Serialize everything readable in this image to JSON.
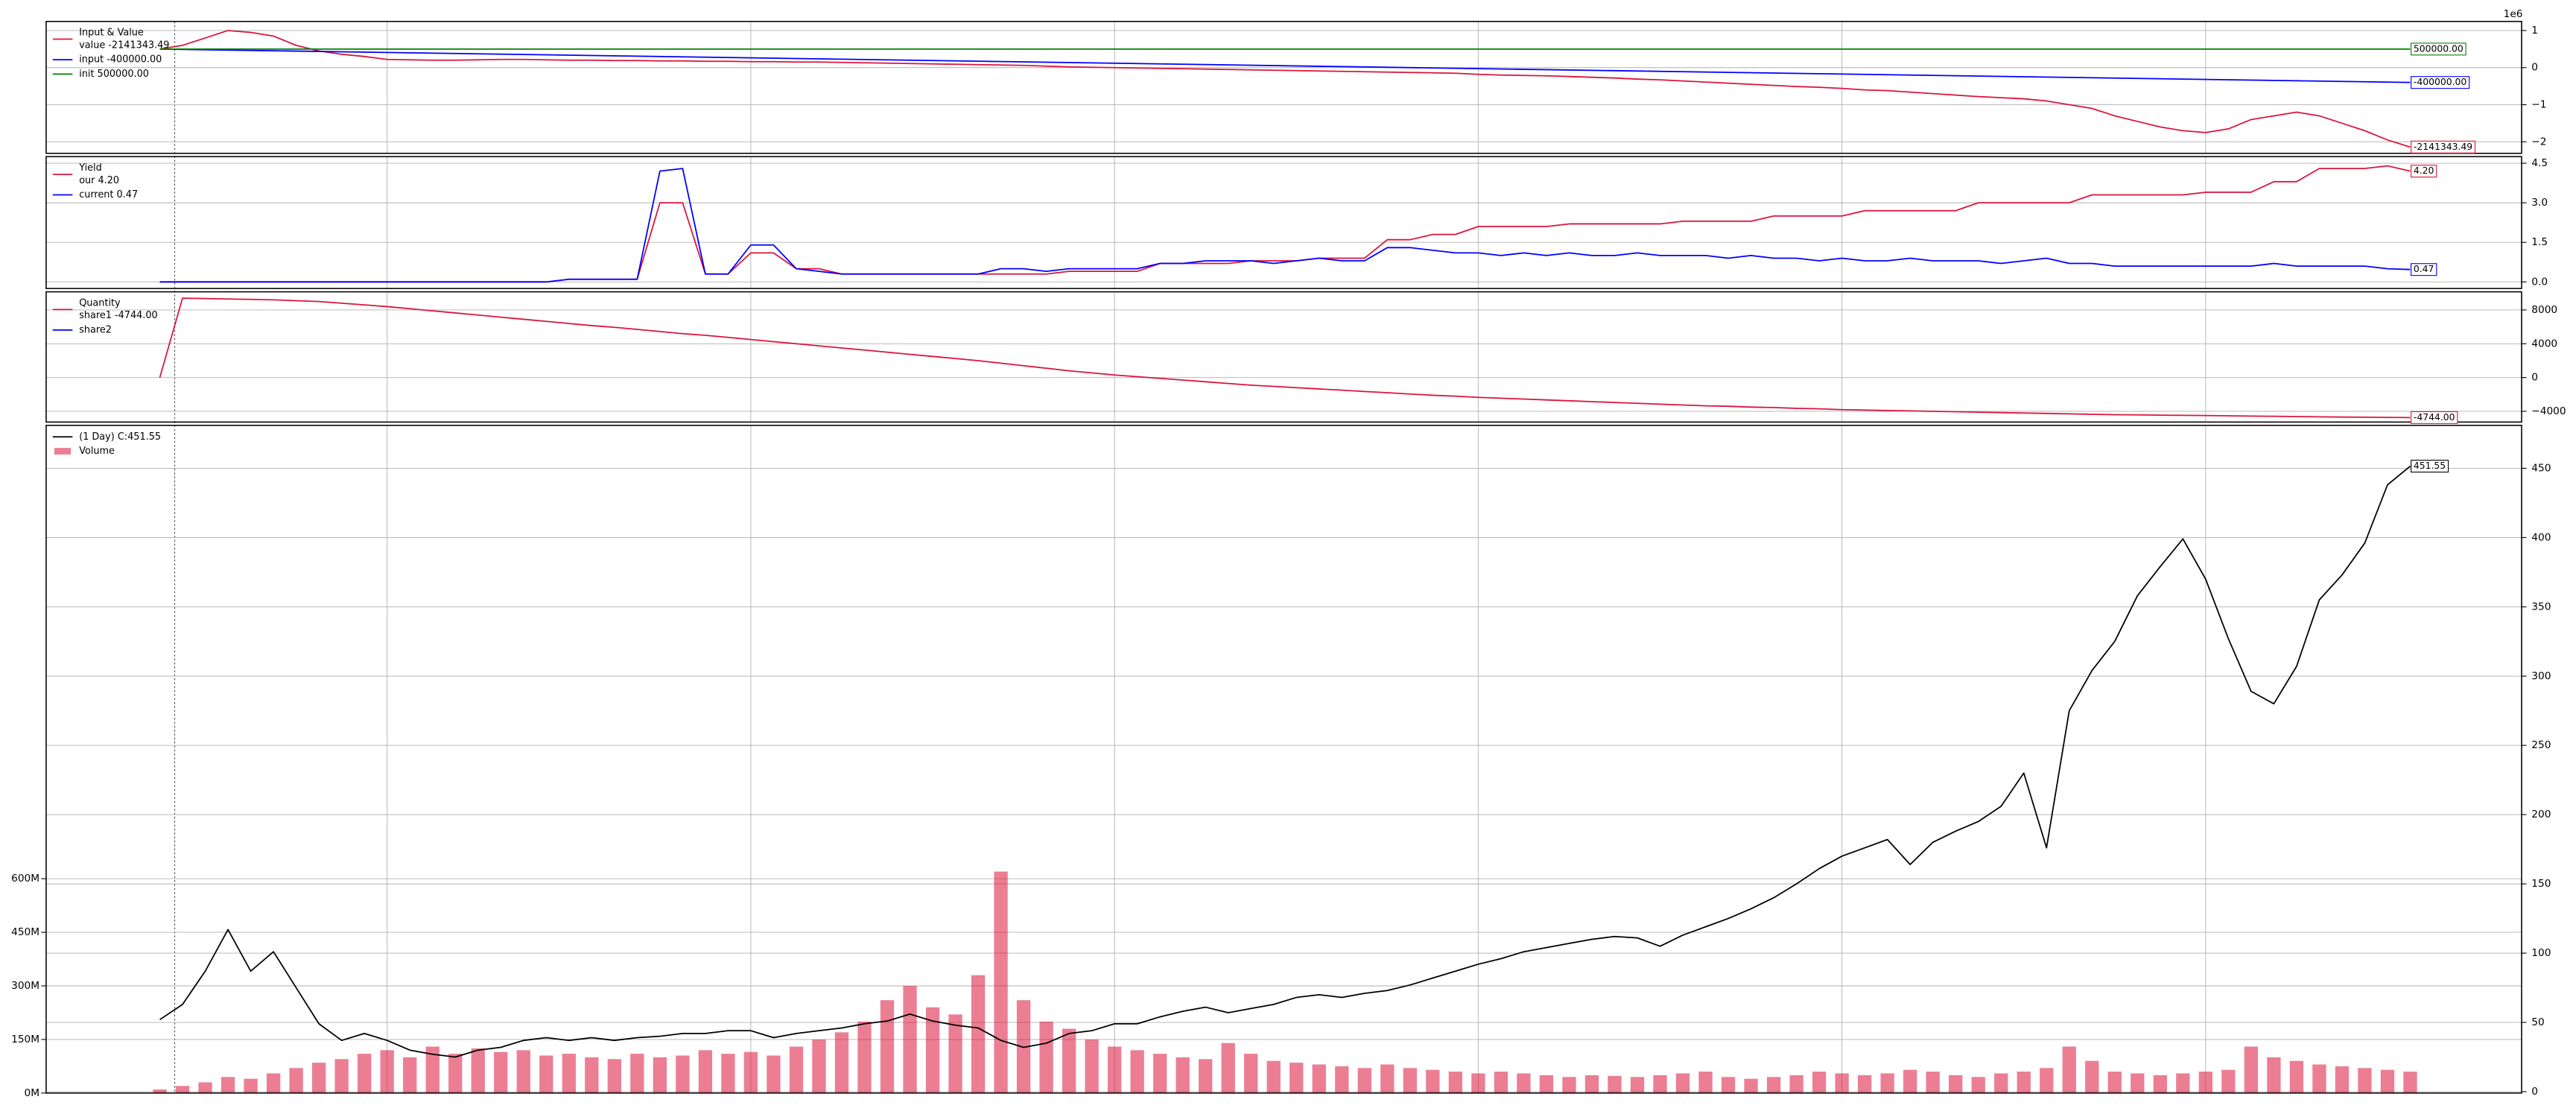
{
  "chart_data": [
    {
      "type": "line",
      "title": "Input & Value",
      "offset_text": "1e6",
      "legend": "upper left",
      "grid": true,
      "xlim": [
        -5,
        103.9
      ],
      "xticks": [
        10,
        26,
        42,
        58,
        74,
        90
      ],
      "ylim": [
        -2310000,
        1245000
      ],
      "yticks": [
        {
          "value": 1000000,
          "label": "1"
        },
        0,
        {
          "value": -1000000,
          "label": "−1"
        },
        {
          "value": -2000000,
          "label": "−2"
        }
      ],
      "series": [
        {
          "name": "value -2141343.49",
          "color": "#dc143c",
          "end_label": "-2141343.49",
          "values": [
            500000,
            600000,
            800000,
            1000000,
            950000,
            850000,
            600000,
            450000,
            360000,
            300000,
            220000,
            210000,
            200000,
            200000,
            210000,
            220000,
            220000,
            210000,
            200000,
            200000,
            190000,
            190000,
            180000,
            180000,
            170000,
            170000,
            160000,
            160000,
            150000,
            150000,
            140000,
            130000,
            120000,
            110000,
            100000,
            90000,
            80000,
            70000,
            60000,
            40000,
            20000,
            10000,
            0,
            -10000,
            -20000,
            -30000,
            -40000,
            -50000,
            -60000,
            -70000,
            -80000,
            -90000,
            -100000,
            -110000,
            -120000,
            -130000,
            -140000,
            -150000,
            -180000,
            -200000,
            -210000,
            -220000,
            -240000,
            -260000,
            -280000,
            -310000,
            -330000,
            -360000,
            -390000,
            -420000,
            -450000,
            -480000,
            -510000,
            -530000,
            -560000,
            -600000,
            -620000,
            -660000,
            -700000,
            -740000,
            -780000,
            -810000,
            -840000,
            -900000,
            -1000000,
            -1100000,
            -1300000,
            -1450000,
            -1600000,
            -1700000,
            -1750000,
            -1650000,
            -1400000,
            -1300000,
            -1200000,
            -1300000,
            -1500000,
            -1700000,
            -1950000,
            -2141343.49
          ]
        },
        {
          "name": "input -400000.00",
          "color": "#0000ff",
          "end_label": "-400000.00",
          "x": [
            0,
            99
          ],
          "values": [
            500000,
            -400000
          ]
        },
        {
          "name": "init 500000.00",
          "color": "#008000",
          "end_label": "500000.00",
          "x": [
            0,
            99
          ],
          "values": [
            500000,
            500000
          ]
        }
      ]
    },
    {
      "type": "line",
      "title": "Yield",
      "legend": "upper left",
      "grid": true,
      "xlim": [
        -5,
        103.9
      ],
      "xticks": [
        10,
        26,
        42,
        58,
        74,
        90
      ],
      "ylim": [
        -0.25,
        4.75
      ],
      "yticks": [
        4.5,
        {
          "value": 3,
          "label": "3.0"
        },
        1.5,
        {
          "value": 0,
          "label": "0.0"
        }
      ],
      "series": [
        {
          "name": "our 4.20",
          "color": "#dc143c",
          "end_label": "4.20",
          "values": [
            0,
            0,
            0,
            0,
            0,
            0,
            0,
            0,
            0,
            0,
            0,
            0,
            0,
            0,
            0,
            0,
            0,
            0,
            0.1,
            0.1,
            0.1,
            0.1,
            3,
            3,
            0.3,
            0.3,
            1.1,
            1.1,
            0.5,
            0.5,
            0.3,
            0.3,
            0.3,
            0.3,
            0.3,
            0.3,
            0.3,
            0.3,
            0.3,
            0.3,
            0.4,
            0.4,
            0.4,
            0.4,
            0.7,
            0.7,
            0.7,
            0.7,
            0.8,
            0.8,
            0.8,
            0.9,
            0.9,
            0.9,
            1.6,
            1.6,
            1.8,
            1.8,
            2.1,
            2.1,
            2.1,
            2.1,
            2.2,
            2.2,
            2.2,
            2.2,
            2.2,
            2.3,
            2.3,
            2.3,
            2.3,
            2.5,
            2.5,
            2.5,
            2.5,
            2.7,
            2.7,
            2.7,
            2.7,
            2.7,
            3,
            3,
            3,
            3,
            3,
            3.3,
            3.3,
            3.3,
            3.3,
            3.3,
            3.4,
            3.4,
            3.4,
            3.8,
            3.8,
            4.3,
            4.3,
            4.3,
            4.4,
            4.2
          ]
        },
        {
          "name": "current 0.47",
          "color": "#0000ff",
          "end_label": "0.47",
          "values": [
            0,
            0,
            0,
            0,
            0,
            0,
            0,
            0,
            0,
            0,
            0,
            0,
            0,
            0,
            0,
            0,
            0,
            0,
            0.1,
            0.1,
            0.1,
            0.1,
            4.2,
            4.3,
            0.3,
            0.3,
            1.4,
            1.4,
            0.5,
            0.4,
            0.3,
            0.3,
            0.3,
            0.3,
            0.3,
            0.3,
            0.3,
            0.5,
            0.5,
            0.4,
            0.5,
            0.5,
            0.5,
            0.5,
            0.7,
            0.7,
            0.8,
            0.8,
            0.8,
            0.7,
            0.8,
            0.9,
            0.8,
            0.8,
            1.3,
            1.3,
            1.2,
            1.1,
            1.1,
            1.0,
            1.1,
            1.0,
            1.1,
            1.0,
            1.0,
            1.1,
            1.0,
            1.0,
            1.0,
            0.9,
            1.0,
            0.9,
            0.9,
            0.8,
            0.9,
            0.8,
            0.8,
            0.9,
            0.8,
            0.8,
            0.8,
            0.7,
            0.8,
            0.9,
            0.7,
            0.7,
            0.6,
            0.6,
            0.6,
            0.6,
            0.6,
            0.6,
            0.6,
            0.7,
            0.6,
            0.6,
            0.6,
            0.6,
            0.5,
            0.47
          ]
        }
      ]
    },
    {
      "type": "line",
      "title": "Quantity",
      "legend": "upper left",
      "grid": true,
      "xlim": [
        -5,
        103.9
      ],
      "xticks": [
        10,
        26,
        42,
        58,
        74,
        90
      ],
      "ylim": [
        -5270,
        10150
      ],
      "yticks": [
        8000,
        4000,
        0,
        {
          "value": -4000,
          "label": "−4000"
        }
      ],
      "series": [
        {
          "name": "share1 -4744.00",
          "color": "#dc143c",
          "end_label": "-4744.00",
          "values": [
            0,
            9400,
            9350,
            9300,
            9250,
            9200,
            9100,
            9000,
            8800,
            8600,
            8400,
            8150,
            7900,
            7650,
            7400,
            7150,
            6900,
            6650,
            6400,
            6150,
            5950,
            5700,
            5450,
            5200,
            5000,
            4750,
            4500,
            4250,
            4000,
            3750,
            3500,
            3250,
            3000,
            2750,
            2500,
            2250,
            2000,
            1700,
            1400,
            1100,
            800,
            550,
            300,
            100,
            -100,
            -300,
            -500,
            -700,
            -900,
            -1050,
            -1200,
            -1350,
            -1500,
            -1650,
            -1800,
            -1950,
            -2100,
            -2200,
            -2350,
            -2450,
            -2550,
            -2650,
            -2750,
            -2850,
            -2950,
            -3050,
            -3150,
            -3250,
            -3350,
            -3400,
            -3500,
            -3550,
            -3650,
            -3700,
            -3800,
            -3850,
            -3900,
            -3950,
            -4000,
            -4050,
            -4100,
            -4150,
            -4200,
            -4250,
            -4300,
            -4350,
            -4400,
            -4420,
            -4450,
            -4480,
            -4500,
            -4530,
            -4560,
            -4590,
            -4620,
            -4650,
            -4680,
            -4700,
            -4720,
            -4744
          ]
        },
        {
          "name": "share2",
          "color": "#0000ff"
        }
      ]
    },
    {
      "type": "line",
      "legend": "upper left",
      "grid": true,
      "xlim": [
        -5,
        103.9
      ],
      "xticks": [
        10,
        26,
        42,
        58,
        74,
        90
      ],
      "ylim": [
        -1,
        481
      ],
      "yticks": [
        0,
        50,
        100,
        150,
        200,
        250,
        300,
        350,
        400,
        450
      ],
      "y2lim": [
        0,
        1869000000
      ],
      "y2ticks": [
        {
          "value": 0,
          "label": "0M"
        },
        {
          "value": 150000000,
          "label": "150M"
        },
        {
          "value": 300000000,
          "label": "300M"
        },
        {
          "value": 450000000,
          "label": "450M"
        },
        {
          "value": 600000000,
          "label": "600M"
        }
      ],
      "series": [
        {
          "name": "(1 Day) C:451.55",
          "color": "#000000",
          "end_label": "451.55",
          "values": [
            52,
            63,
            87,
            117,
            87,
            101,
            75,
            49,
            37,
            42,
            37,
            30,
            27,
            25,
            30,
            32,
            37,
            39,
            37,
            39,
            37,
            39,
            40,
            42,
            42,
            44,
            44,
            39,
            42,
            44,
            46,
            49,
            51,
            56,
            51,
            48,
            46,
            37,
            32,
            35,
            42,
            44,
            49,
            49,
            54,
            58,
            61,
            57,
            60,
            63,
            68,
            70,
            68,
            71,
            73,
            77,
            82,
            87,
            92,
            96,
            101,
            104,
            107,
            110,
            112,
            111,
            105,
            113,
            119,
            125,
            132,
            140,
            150,
            161,
            170,
            176,
            182,
            164,
            180,
            188,
            195,
            206,
            230,
            176,
            275,
            304,
            325,
            358,
            379,
            399,
            370,
            327,
            289,
            280,
            307,
            355,
            373,
            396,
            438,
            451.55
          ]
        },
        {
          "name": "Volume",
          "type": "bar",
          "axis": "y2",
          "color": "#dc143c",
          "values": [
            10000000,
            20000000,
            30000000,
            45000000,
            40000000,
            55000000,
            70000000,
            85000000,
            95000000,
            110000000,
            120000000,
            100000000,
            130000000,
            110000000,
            125000000,
            115000000,
            120000000,
            105000000,
            110000000,
            100000000,
            95000000,
            110000000,
            100000000,
            105000000,
            120000000,
            110000000,
            115000000,
            105000000,
            130000000,
            150000000,
            170000000,
            200000000,
            260000000,
            300000000,
            240000000,
            220000000,
            330000000,
            620000000,
            260000000,
            200000000,
            180000000,
            150000000,
            130000000,
            120000000,
            110000000,
            100000000,
            95000000,
            140000000,
            110000000,
            90000000,
            85000000,
            80000000,
            75000000,
            70000000,
            80000000,
            70000000,
            65000000,
            60000000,
            55000000,
            60000000,
            55000000,
            50000000,
            45000000,
            50000000,
            48000000,
            45000000,
            50000000,
            55000000,
            60000000,
            45000000,
            40000000,
            45000000,
            50000000,
            60000000,
            55000000,
            50000000,
            55000000,
            65000000,
            60000000,
            50000000,
            45000000,
            55000000,
            60000000,
            70000000,
            130000000,
            90000000,
            60000000,
            55000000,
            50000000,
            55000000,
            60000000,
            65000000,
            130000000,
            100000000,
            90000000,
            80000000,
            75000000,
            70000000,
            65000000,
            60000000
          ]
        }
      ]
    }
  ]
}
